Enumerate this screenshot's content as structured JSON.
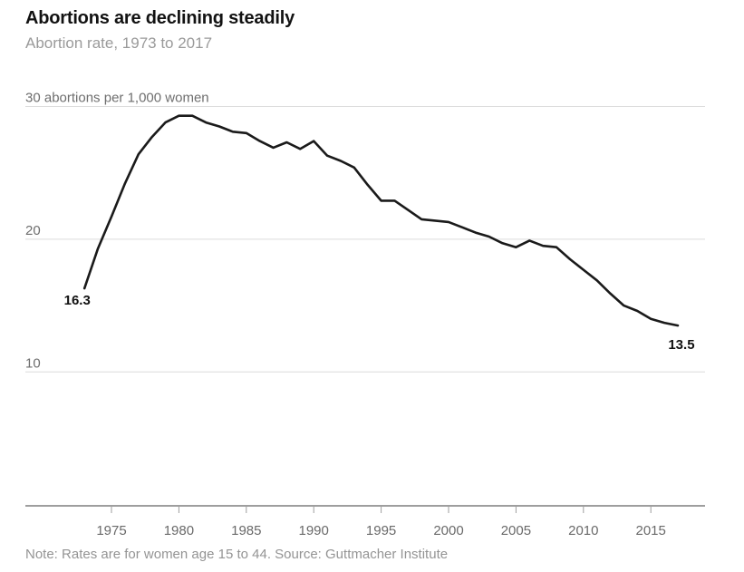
{
  "header": {
    "title": "Abortions are declining steadily",
    "subtitle": "Abortion rate, 1973 to 2017"
  },
  "footer": {
    "note": "Note: Rates are for women age 15 to 44. Source: Guttmacher Institute"
  },
  "chart_data": {
    "type": "line",
    "title": "Abortions are declining steadily",
    "subtitle": "Abortion rate, 1973 to 2017",
    "xlabel": "",
    "ylabel": "abortions per 1,000 women",
    "xlim": [
      1973,
      2017
    ],
    "ylim": [
      8.5,
      30
    ],
    "grid": true,
    "legend_position": "none",
    "series": [
      {
        "name": "Abortion rate",
        "x": [
          1973,
          1974,
          1975,
          1976,
          1977,
          1978,
          1979,
          1980,
          1981,
          1982,
          1983,
          1984,
          1985,
          1986,
          1987,
          1988,
          1989,
          1990,
          1991,
          1992,
          1993,
          1994,
          1995,
          1996,
          1997,
          1998,
          1999,
          2000,
          2001,
          2002,
          2003,
          2004,
          2005,
          2006,
          2007,
          2008,
          2009,
          2010,
          2011,
          2012,
          2013,
          2014,
          2015,
          2016,
          2017
        ],
        "values": [
          16.3,
          19.3,
          21.7,
          24.2,
          26.4,
          27.7,
          28.8,
          29.3,
          29.3,
          28.8,
          28.5,
          28.1,
          28.0,
          27.4,
          26.9,
          27.3,
          26.8,
          27.4,
          26.3,
          25.9,
          25.4,
          24.1,
          22.9,
          22.9,
          22.2,
          21.5,
          21.4,
          21.3,
          20.9,
          20.5,
          20.2,
          19.7,
          19.4,
          19.9,
          19.5,
          19.4,
          18.5,
          17.7,
          16.9,
          15.9,
          15.0,
          14.6,
          14.0,
          13.7,
          13.5
        ]
      }
    ],
    "y_ticks": [
      {
        "value": 30,
        "label": "30 abortions per 1,000 women"
      },
      {
        "value": 20,
        "label": "20"
      },
      {
        "value": 10,
        "label": "10"
      }
    ],
    "x_ticks": [
      {
        "value": 1975,
        "label": "1975"
      },
      {
        "value": 1980,
        "label": "1980"
      },
      {
        "value": 1985,
        "label": "1985"
      },
      {
        "value": 1990,
        "label": "1990"
      },
      {
        "value": 1995,
        "label": "1995"
      },
      {
        "value": 2000,
        "label": "2000"
      },
      {
        "value": 2005,
        "label": "2005"
      },
      {
        "value": 2010,
        "label": "2010"
      },
      {
        "value": 2015,
        "label": "2015"
      }
    ],
    "first_point_label": "16.3",
    "last_point_label": "13.5",
    "colors": {
      "line": "#1a1a1a",
      "gridline": "#dcdcdc",
      "axis": "#9e9e9e",
      "title": "#121212",
      "subtitle": "#9a9a9a",
      "tick_label": "#6a6a6a",
      "note": "#949494",
      "background": "#ffffff"
    }
  }
}
